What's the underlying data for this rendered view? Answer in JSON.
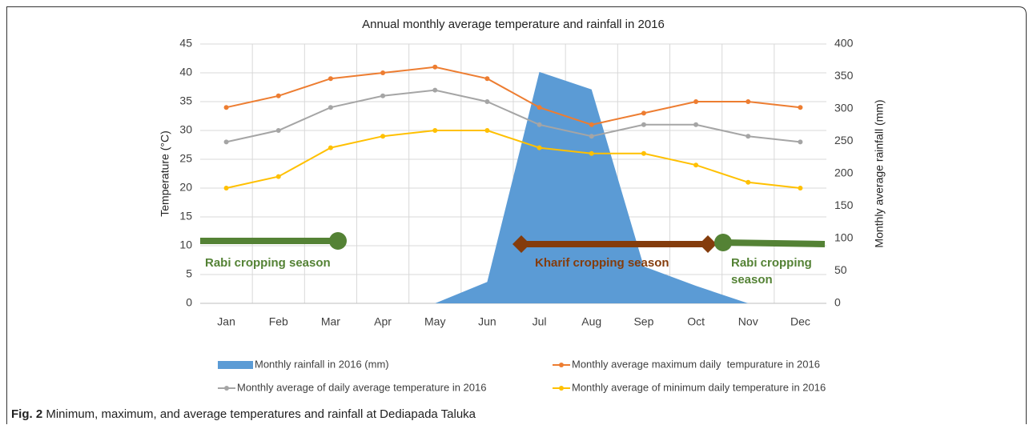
{
  "chart_data": {
    "type": "combo",
    "title": "Annual monthly average temperature and rainfall in 2016",
    "y_label": "Temperature (°C)",
    "y2_label": "Monthly average rainfall (mm)",
    "categories": [
      "Jan",
      "Feb",
      "Mar",
      "Apr",
      "May",
      "Jun",
      "Jul",
      "Aug",
      "Sep",
      "Oct",
      "Nov",
      "Dec"
    ],
    "series": [
      {
        "name": "Monthly rainfall in 2016 (mm)",
        "type": "area",
        "axis": "y2",
        "color": "#5b9bd5",
        "values": [
          0,
          0,
          0,
          0,
          0,
          33,
          357,
          330,
          57,
          27,
          0,
          0
        ]
      },
      {
        "name": "Monthly average maximum daily  tempurature in 2016",
        "type": "line",
        "color": "#ed7d31",
        "values": [
          34,
          36,
          39,
          40,
          41,
          39,
          34,
          31,
          33,
          35,
          35,
          34
        ]
      },
      {
        "name": "Monthly average of daily average temperature in 2016",
        "type": "line",
        "color": "#a5a5a5",
        "values": [
          28,
          30,
          34,
          36,
          37,
          35,
          31,
          29,
          31,
          31,
          29,
          28
        ]
      },
      {
        "name": "Monthly average of minimum daily temperature in 2016",
        "type": "line",
        "color": "#ffc000",
        "values": [
          20,
          22,
          27,
          29,
          30,
          30,
          27,
          26,
          26,
          24,
          21,
          20
        ]
      }
    ],
    "ylim": [
      0,
      45
    ],
    "yticks": [
      0,
      5,
      10,
      15,
      20,
      25,
      30,
      35,
      40,
      45
    ],
    "y2lim": [
      0,
      400
    ],
    "y2ticks": [
      0,
      50,
      100,
      150,
      200,
      250,
      300,
      350,
      400
    ],
    "grid": true,
    "annotations": [
      {
        "text": "Rabi cropping season",
        "color": "#548235"
      },
      {
        "text": "Kharif cropping season",
        "color": "#843c0c"
      },
      {
        "text": "Rabi cropping season",
        "color": "#548235"
      }
    ]
  },
  "caption": {
    "label": "Fig. 2",
    "text": "Minimum, maximum, and average temperatures and rainfall at Dediapada Taluka"
  }
}
